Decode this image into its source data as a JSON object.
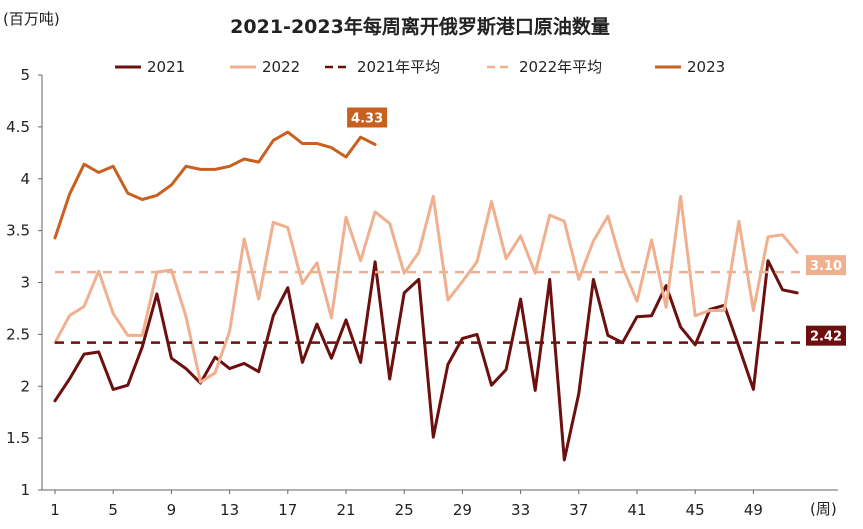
{
  "chart_data": {
    "type": "line",
    "title": "2021-2023年每周离开俄罗斯港口原油数量",
    "y_unit": "(百万吨)",
    "x_unit": "(周)",
    "ylim": [
      1,
      5
    ],
    "yticks": [
      1,
      1.5,
      2,
      2.5,
      3,
      3.5,
      4,
      4.5,
      5
    ],
    "yticklabels": [
      "1",
      "1.5",
      "2",
      "2.5",
      "3",
      "3.5",
      "4",
      "4.5",
      "5"
    ],
    "xlim": [
      1,
      52
    ],
    "xticks": [
      1,
      5,
      9,
      13,
      17,
      21,
      25,
      29,
      33,
      37,
      41,
      45,
      49
    ],
    "xticklabels": [
      "1",
      "5",
      "9",
      "13",
      "17",
      "21",
      "25",
      "29",
      "33",
      "37",
      "41",
      "45",
      "49"
    ],
    "legend_position": "top",
    "series": [
      {
        "name": "2021",
        "style": "solid",
        "color": "#6b0f0f",
        "values": [
          1.86,
          2.07,
          2.31,
          2.33,
          1.97,
          2.01,
          2.38,
          2.89,
          2.27,
          2.17,
          2.03,
          2.28,
          2.17,
          2.22,
          2.14,
          2.68,
          2.95,
          2.23,
          2.6,
          2.27,
          2.64,
          2.23,
          3.2,
          2.07,
          2.9,
          3.03,
          1.51,
          2.21,
          2.46,
          2.5,
          2.01,
          2.16,
          2.84,
          1.96,
          3.03,
          1.29,
          1.93,
          3.03,
          2.49,
          2.42,
          2.67,
          2.68,
          2.97,
          2.57,
          2.4,
          2.74,
          2.78,
          2.38,
          1.97,
          3.21,
          2.93,
          2.9
        ]
      },
      {
        "name": "2022",
        "style": "solid",
        "color": "#f0b08f",
        "values": [
          2.42,
          2.68,
          2.77,
          3.11,
          2.7,
          2.49,
          2.49,
          3.1,
          3.12,
          2.67,
          2.04,
          2.13,
          2.53,
          3.42,
          2.84,
          3.58,
          3.53,
          2.99,
          3.19,
          2.66,
          3.63,
          3.21,
          3.68,
          3.57,
          3.09,
          3.29,
          3.83,
          2.83,
          3.01,
          3.2,
          3.78,
          3.23,
          3.45,
          3.09,
          3.65,
          3.59,
          3.03,
          3.4,
          3.64,
          3.15,
          2.82,
          3.41,
          2.76,
          3.83,
          2.68,
          2.73,
          2.73,
          3.59,
          2.73,
          3.44,
          3.46,
          3.29
        ]
      },
      {
        "name": "2021年平均",
        "style": "dashed",
        "color": "#6b0f0f",
        "constant": 2.42
      },
      {
        "name": "2022年平均",
        "style": "dashed",
        "color": "#f0b08f",
        "constant": 3.1
      },
      {
        "name": "2023",
        "style": "solid",
        "color": "#c8601f",
        "values": [
          3.43,
          3.85,
          4.14,
          4.06,
          4.12,
          3.86,
          3.8,
          3.84,
          3.94,
          4.12,
          4.09,
          4.09,
          4.12,
          4.19,
          4.16,
          4.37,
          4.45,
          4.34,
          4.34,
          4.3,
          4.21,
          4.4,
          4.33
        ]
      }
    ],
    "data_labels": [
      {
        "series": "2023",
        "x": 23,
        "text": "4.33",
        "color": "#c8601f"
      },
      {
        "series": "2022年平均",
        "x": 52,
        "text": "3.10",
        "color": "#f0b08f"
      },
      {
        "series": "2021年平均",
        "x": 52,
        "text": "2.42",
        "color": "#6b0f0f"
      }
    ]
  }
}
